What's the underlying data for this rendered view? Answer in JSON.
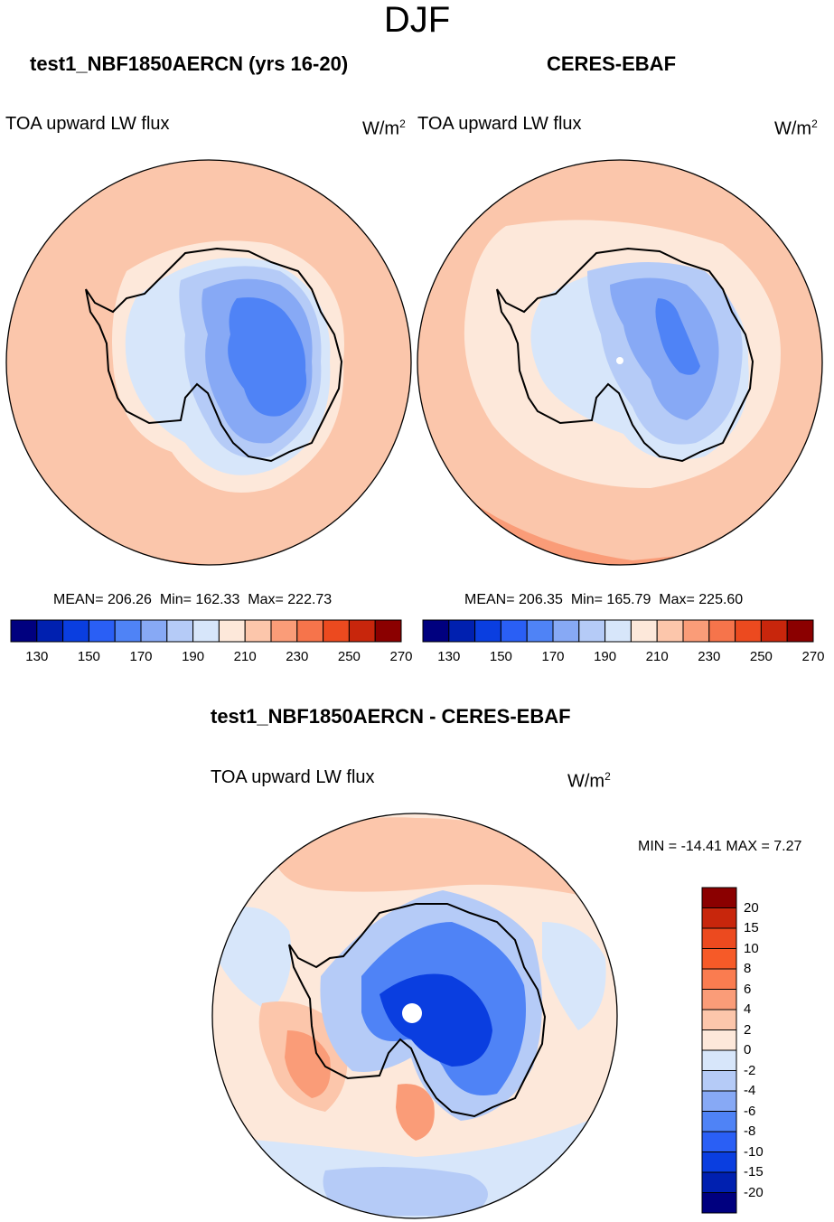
{
  "figure_title": "DJF",
  "colors": {
    "scale": [
      "#00007f",
      "#0020b0",
      "#0a3ee0",
      "#2a5ff5",
      "#4f83f6",
      "#87a9f5",
      "#b5cbf7",
      "#d7e6fa",
      "#fde8da",
      "#fcc6ab",
      "#fa9c78",
      "#f6744b",
      "#ec4a1f",
      "#c8260c",
      "#8b0000"
    ],
    "ocean": "#fbc6ab",
    "coast": "#000000"
  },
  "chart_data": [
    {
      "type": "heatmap",
      "name": "model",
      "title": "test1_NBF1850AERCN (yrs 16-20)",
      "variable": "TOA upward LW flux",
      "units": "W/m",
      "units_exp": "2",
      "mean_text": "MEAN= 206.26",
      "min_text": "Min= 162.33",
      "max_text": "Max= 222.73",
      "colorbar_ticks": [
        "130",
        "150",
        "170",
        "190",
        "210",
        "230",
        "250",
        "270"
      ],
      "colorbar_levels": 15
    },
    {
      "type": "heatmap",
      "name": "obs",
      "title": "CERES-EBAF",
      "variable": "TOA upward LW flux",
      "units": "W/m",
      "units_exp": "2",
      "mean_text": "MEAN= 206.35",
      "min_text": "Min= 165.79",
      "max_text": "Max= 225.60",
      "colorbar_ticks": [
        "130",
        "150",
        "170",
        "190",
        "210",
        "230",
        "250",
        "270"
      ],
      "colorbar_levels": 15
    },
    {
      "type": "heatmap",
      "name": "diff",
      "title": "test1_NBF1850AERCN - CERES-EBAF",
      "variable": "TOA upward LW flux",
      "units": "W/m",
      "units_exp": "2",
      "minmax_text": "MIN = -14.41 MAX =   7.27",
      "colorbar_ticks": [
        "20",
        "15",
        "10",
        "8",
        "6",
        "4",
        "2",
        "0",
        "-2",
        "-4",
        "-6",
        "-8",
        "-10",
        "-15",
        "-20"
      ],
      "colorbar_levels": 16
    }
  ]
}
